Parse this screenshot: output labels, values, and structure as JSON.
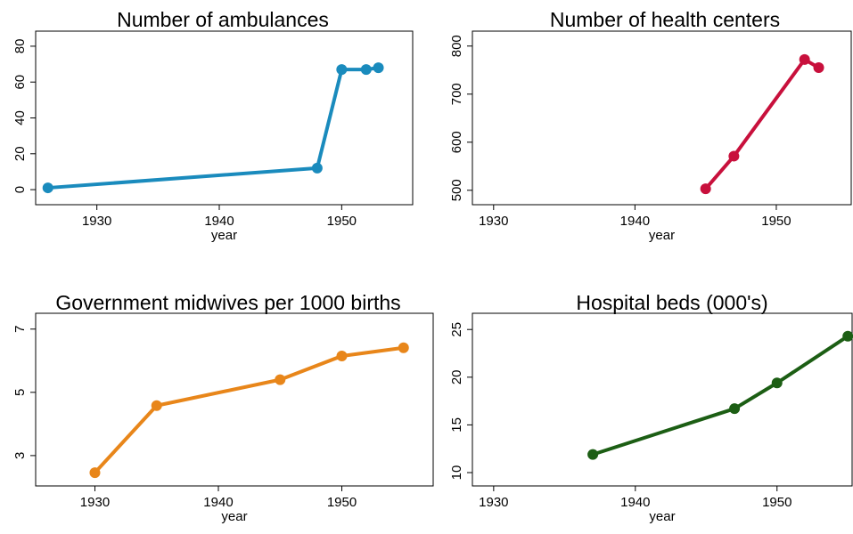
{
  "chart_data": [
    {
      "type": "line",
      "title": "Number of ambulances",
      "xlabel": "year",
      "x": [
        1926,
        1948,
        1950,
        1952,
        1953
      ],
      "values": [
        1,
        12,
        67,
        67,
        68
      ],
      "color": "#1a8bbd",
      "xlim": [
        1925,
        1955.8
      ],
      "xticks": [
        1930,
        1940,
        1950
      ],
      "ylim": [
        -8.4,
        88.4
      ],
      "yticks": [
        0,
        20,
        40,
        60,
        80
      ]
    },
    {
      "type": "line",
      "title": "Number of health centers",
      "xlabel": "year",
      "x": [
        1945,
        1947,
        1952,
        1953
      ],
      "values": [
        503,
        571,
        772,
        755
      ],
      "color": "#c8103c",
      "xlim": [
        1928.5,
        1955.3
      ],
      "xticks": [
        1930,
        1940,
        1950
      ],
      "ylim": [
        470,
        831
      ],
      "yticks": [
        500,
        600,
        700,
        800
      ]
    },
    {
      "type": "line",
      "title": "Government midwives per 1000 births",
      "xlabel": "year",
      "x": [
        1930,
        1935,
        1945,
        1950,
        1955
      ],
      "values": [
        2.46,
        4.58,
        5.4,
        6.15,
        6.41
      ],
      "color": "#e8861a",
      "xlim": [
        1925.2,
        1957.4
      ],
      "xticks": [
        1930,
        1940,
        1950
      ],
      "ylim": [
        2.04,
        7.5
      ],
      "yticks": [
        3,
        5,
        7
      ]
    },
    {
      "type": "line",
      "title": "Hospital beds (000's)",
      "xlabel": "year",
      "x": [
        1937,
        1947,
        1950,
        1955
      ],
      "values": [
        11.9,
        16.7,
        19.4,
        24.3
      ],
      "color": "#1c5e14",
      "xlim": [
        1928.5,
        1955.3
      ],
      "xticks": [
        1930,
        1940,
        1950
      ],
      "ylim": [
        8.6,
        26.7
      ],
      "yticks": [
        10,
        15,
        20,
        25
      ]
    }
  ]
}
